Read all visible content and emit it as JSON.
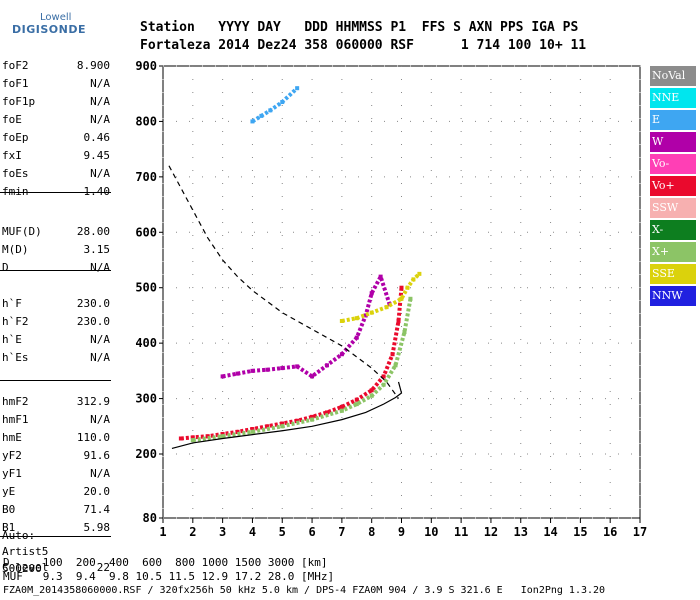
{
  "logo": {
    "line1": "Lowell",
    "line2": "DIGISONDE"
  },
  "header": {
    "line1": "Station   YYYY DAY   DDD HHMMSS P1  FFS S AXN PPS IGA PS",
    "line2": "Fortaleza 2014 Dez24 358 060000 RSF      1 714 100 10+ 11"
  },
  "params": [
    {
      "name": "foF2",
      "value": "8.900"
    },
    {
      "name": "foF1",
      "value": "N/A"
    },
    {
      "name": "foF1p",
      "value": "N/A"
    },
    {
      "name": "foE",
      "value": "N/A"
    },
    {
      "name": "foEp",
      "value": "0.46"
    },
    {
      "name": "fxI",
      "value": "9.45"
    },
    {
      "name": "foEs",
      "value": "N/A"
    },
    {
      "name": "fmin",
      "value": "1.40"
    },
    {
      "name": "MUF(D)",
      "value": "28.00"
    },
    {
      "name": "M(D)",
      "value": "3.15"
    },
    {
      "name": "D",
      "value": "N/A"
    },
    {
      "name": "h`F",
      "value": "230.0"
    },
    {
      "name": "h`F2",
      "value": "230.0"
    },
    {
      "name": "h`E",
      "value": "N/A"
    },
    {
      "name": "h`Es",
      "value": "N/A"
    },
    {
      "name": "hmF2",
      "value": "312.9"
    },
    {
      "name": "hmF1",
      "value": "N/A"
    },
    {
      "name": "hmE",
      "value": "110.0"
    },
    {
      "name": "yF2",
      "value": "91.6"
    },
    {
      "name": "yF1",
      "value": "N/A"
    },
    {
      "name": "yE",
      "value": "20.0"
    },
    {
      "name": "B0",
      "value": "71.4"
    },
    {
      "name": "B1",
      "value": "5.98"
    },
    {
      "name": "C-level",
      "value": "22"
    }
  ],
  "auto": {
    "label": "Auto:",
    "software": "Artist5",
    "version": "500200"
  },
  "legend": [
    {
      "label": "NoVal",
      "color": "#8c8c8c"
    },
    {
      "label": "NNE",
      "color": "#00e6ee"
    },
    {
      "label": "E",
      "color": "#3ea6f2"
    },
    {
      "label": "W",
      "color": "#b000a8"
    },
    {
      "label": "Vo-",
      "color": "#ff3fb5"
    },
    {
      "label": "Vo+",
      "color": "#ea0a2d"
    },
    {
      "label": "SSW",
      "color": "#f7b0b0"
    },
    {
      "label": "X-",
      "color": "#0d7e1f"
    },
    {
      "label": "X+",
      "color": "#8cc466"
    },
    {
      "label": "SSE",
      "color": "#dbd20c"
    },
    {
      "label": "NNW",
      "color": "#2020e0"
    }
  ],
  "footer": {
    "d_row": "D     100  200  400  600  800 1000 1500 3000 [km]",
    "muf_row": "MUF   9.3  9.4  9.8 10.5 11.5 12.9 17.2 28.0 [MHz]",
    "file_row": "FZA0M_2014358060000.RSF / 320fx256h 50 kHz 5.0 km / DPS-4 FZA0M 904 / 3.9 S 321.6 E   Ion2Png 1.3.20"
  },
  "chart_data": {
    "type": "scatter",
    "xlim": [
      1,
      17
    ],
    "ylim": [
      80,
      900
    ],
    "xticks": [
      "1",
      "2",
      "3",
      "4",
      "5",
      "6",
      "7",
      "8",
      "9",
      "10",
      "11",
      "12",
      "13",
      "14",
      "15",
      "16",
      "17"
    ],
    "yticks": [
      "80",
      "200",
      "300",
      "400",
      "500",
      "600",
      "700",
      "800",
      "900"
    ],
    "grid": true,
    "series": [
      {
        "name": "Vo+",
        "color": "#ea0a2d",
        "points": [
          [
            1.6,
            228
          ],
          [
            2.0,
            230
          ],
          [
            2.5,
            232
          ],
          [
            3.0,
            236
          ],
          [
            3.5,
            240
          ],
          [
            4.0,
            245
          ],
          [
            4.5,
            250
          ],
          [
            5.0,
            255
          ],
          [
            5.5,
            260
          ],
          [
            6.0,
            267
          ],
          [
            6.5,
            275
          ],
          [
            7.0,
            285
          ],
          [
            7.5,
            298
          ],
          [
            8.0,
            315
          ],
          [
            8.4,
            340
          ],
          [
            8.7,
            380
          ],
          [
            8.9,
            440
          ],
          [
            9.0,
            500
          ]
        ]
      },
      {
        "name": "X+",
        "color": "#8cc466",
        "points": [
          [
            2.0,
            225
          ],
          [
            3.0,
            232
          ],
          [
            4.0,
            240
          ],
          [
            5.0,
            250
          ],
          [
            6.0,
            262
          ],
          [
            7.0,
            278
          ],
          [
            7.5,
            290
          ],
          [
            8.0,
            305
          ],
          [
            8.4,
            325
          ],
          [
            8.8,
            360
          ],
          [
            9.1,
            420
          ],
          [
            9.3,
            480
          ]
        ]
      },
      {
        "name": "W",
        "color": "#b000a8",
        "points": [
          [
            3.0,
            340
          ],
          [
            3.5,
            345
          ],
          [
            4.0,
            350
          ],
          [
            4.5,
            352
          ],
          [
            5.0,
            355
          ],
          [
            5.5,
            358
          ],
          [
            6.0,
            340
          ],
          [
            6.5,
            360
          ],
          [
            7.0,
            380
          ],
          [
            7.5,
            410
          ],
          [
            7.8,
            450
          ],
          [
            8.0,
            490
          ],
          [
            8.3,
            520
          ],
          [
            8.6,
            470
          ]
        ]
      },
      {
        "name": "SSE",
        "color": "#dbd20c",
        "points": [
          [
            7.0,
            440
          ],
          [
            7.5,
            445
          ],
          [
            8.0,
            455
          ],
          [
            8.5,
            465
          ],
          [
            9.0,
            480
          ],
          [
            9.2,
            500
          ],
          [
            9.4,
            515
          ],
          [
            9.6,
            525
          ]
        ]
      },
      {
        "name": "E",
        "color": "#3ea6f2",
        "points": [
          [
            4.0,
            800
          ],
          [
            4.3,
            810
          ],
          [
            4.6,
            820
          ],
          [
            5.0,
            835
          ],
          [
            5.5,
            860
          ]
        ]
      }
    ],
    "curves": [
      {
        "name": "profile",
        "style": "solid",
        "points": [
          [
            1.3,
            210
          ],
          [
            2.0,
            220
          ],
          [
            3.0,
            228
          ],
          [
            4.0,
            235
          ],
          [
            5.0,
            242
          ],
          [
            6.0,
            250
          ],
          [
            7.0,
            262
          ],
          [
            7.8,
            275
          ],
          [
            8.4,
            290
          ],
          [
            8.8,
            302
          ],
          [
            9.0,
            310
          ],
          [
            8.9,
            330
          ]
        ]
      },
      {
        "name": "MUF",
        "style": "dashed",
        "points": [
          [
            1.2,
            720
          ],
          [
            1.5,
            690
          ],
          [
            2.0,
            640
          ],
          [
            2.5,
            590
          ],
          [
            3.0,
            550
          ],
          [
            3.5,
            520
          ],
          [
            4.0,
            495
          ],
          [
            4.5,
            475
          ],
          [
            5.0,
            455
          ],
          [
            5.5,
            440
          ],
          [
            6.0,
            425
          ],
          [
            6.5,
            410
          ],
          [
            7.0,
            395
          ],
          [
            7.5,
            375
          ],
          [
            8.0,
            355
          ],
          [
            8.5,
            330
          ],
          [
            8.9,
            300
          ]
        ]
      }
    ]
  }
}
